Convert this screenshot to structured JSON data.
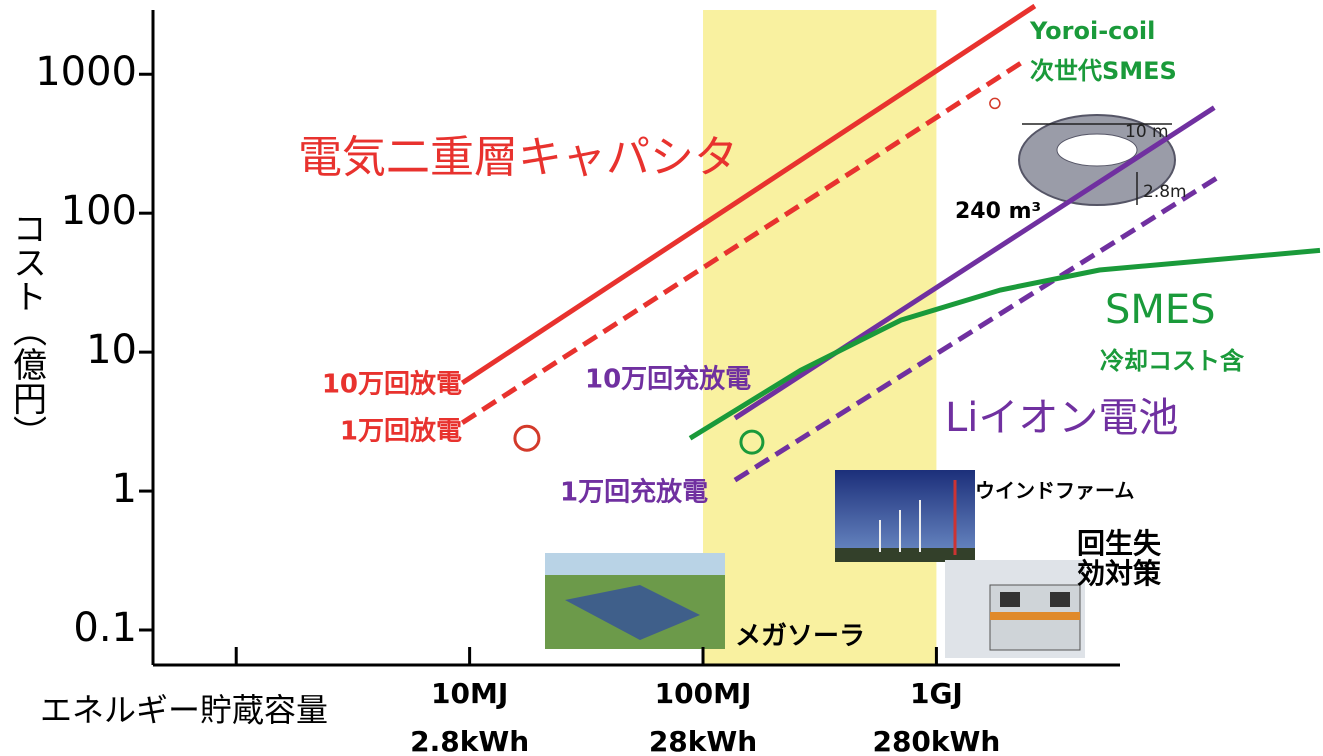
{
  "chart_data": {
    "type": "line",
    "y_label": "コスト（億円）",
    "x_label": "エネルギー貯蔵容量",
    "log_x": true,
    "log_y": true,
    "xlim": [
      0.44,
      44000
    ],
    "ylim": [
      0.056,
      2900
    ],
    "xticks": [
      {
        "value": 1,
        "label": null
      },
      {
        "value": 10,
        "label": "10MJ",
        "sublabel": "2.8kWh"
      },
      {
        "value": 100,
        "label": "100MJ",
        "sublabel": "28kWh"
      },
      {
        "value": 1000,
        "label": "1GJ",
        "sublabel": "280kWh"
      }
    ],
    "yticks": [
      0.1,
      1,
      10,
      100,
      1000
    ],
    "highlight_band": {
      "x": [
        100,
        1000
      ],
      "color": "#f9f1a0"
    },
    "series": [
      {
        "name": "10万回放電",
        "color": "#e8322e",
        "dash": false,
        "x": [
          9.3,
          2640
        ],
        "values": [
          6.0,
          3100
        ]
      },
      {
        "name": "1万回放電",
        "color": "#e8322e",
        "dash": true,
        "x": [
          9.3,
          2400
        ],
        "values": [
          3.1,
          1260
        ]
      },
      {
        "name": "10万回充放電",
        "color": "#7030a0",
        "dash": false,
        "x": [
          137,
          15500
        ],
        "values": [
          3.35,
          575
        ]
      },
      {
        "name": "1万回充放電",
        "color": "#7030a0",
        "dash": true,
        "x": [
          137,
          15800
        ],
        "values": [
          1.2,
          178
        ]
      },
      {
        "name": "SMES",
        "color": "#1a9a3a",
        "dash": false,
        "x": [
          88,
          262,
          705,
          1880,
          5000,
          44000
        ],
        "values": [
          2.4,
          7.4,
          17,
          28,
          39,
          54
        ]
      }
    ],
    "points": [
      {
        "x": 17.6,
        "y": 2.4,
        "color": "#d33a2a",
        "size": 12
      },
      {
        "x": 162,
        "y": 2.25,
        "color": "#1a9a3a",
        "size": 11
      },
      {
        "x": 1780,
        "y": 617,
        "color": "#d33a2a",
        "size": 5
      }
    ],
    "annotations": [
      "電気二重層キャパシタ",
      "冷却コスト含",
      "Liイオン電池",
      "Yoroi-coil",
      "次世代SMES",
      "10 m",
      "2.8m",
      "240 m³",
      "ウインドファーム",
      "回生失",
      "効対策",
      "メガソーラ"
    ]
  }
}
